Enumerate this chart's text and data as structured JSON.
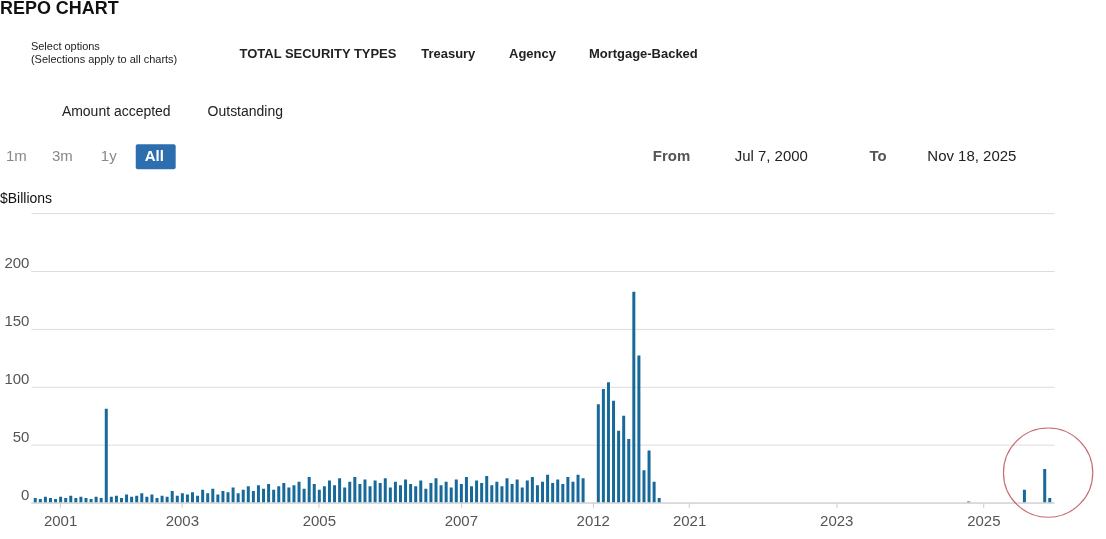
{
  "chart_data": {
    "type": "bar",
    "title": "REPO CHART",
    "ylabel": "$Billions",
    "color": "#17699a",
    "categories": [
      null,
      null,
      null,
      null,
      null,
      "2001",
      null,
      null,
      null,
      null,
      null,
      null,
      null,
      null,
      null,
      null,
      null,
      null,
      null,
      null,
      null,
      null,
      null,
      null,
      null,
      null,
      null,
      null,
      null,
      "2003",
      null,
      null,
      null,
      null,
      null,
      null,
      null,
      null,
      null,
      null,
      null,
      null,
      null,
      null,
      null,
      null,
      null,
      null,
      null,
      null,
      null,
      null,
      null,
      null,
      null,
      null,
      "2005",
      null,
      null,
      null,
      null,
      null,
      null,
      null,
      null,
      null,
      null,
      null,
      null,
      null,
      null,
      null,
      null,
      null,
      null,
      null,
      null,
      null,
      null,
      null,
      null,
      null,
      null,
      null,
      "2007",
      null,
      null,
      null,
      null,
      null,
      null,
      null,
      null,
      null,
      null,
      null,
      null,
      null,
      null,
      null,
      null,
      null,
      null,
      null,
      null,
      null,
      null,
      null,
      null,
      null,
      "2012",
      null,
      null,
      null,
      null,
      null,
      null,
      null,
      null,
      null,
      null,
      null,
      null,
      null,
      null,
      null,
      null,
      null,
      null,
      "2021",
      null,
      null,
      null,
      null,
      null,
      null,
      null,
      null,
      null,
      null,
      null,
      null,
      null,
      null,
      null,
      null,
      null,
      null,
      null,
      null,
      null,
      null,
      null,
      null,
      null,
      null,
      null,
      null,
      "2023",
      null,
      null,
      null,
      null,
      null,
      null,
      null,
      null,
      null,
      null,
      null,
      null,
      null,
      null,
      null,
      null,
      null,
      null,
      null,
      null,
      null,
      null,
      null,
      null,
      null,
      null,
      null,
      null,
      "2025",
      null,
      null,
      null,
      null,
      null,
      null,
      null,
      null,
      null,
      null,
      null,
      null,
      null
    ],
    "values": [
      4,
      3,
      5,
      4,
      3,
      5,
      4,
      6,
      4,
      5,
      4,
      3,
      5,
      4,
      81,
      5,
      6,
      4,
      7,
      5,
      6,
      8,
      5,
      7,
      4,
      6,
      5,
      10,
      6,
      8,
      7,
      9,
      6,
      11,
      8,
      12,
      7,
      10,
      9,
      13,
      8,
      11,
      14,
      10,
      15,
      12,
      16,
      11,
      14,
      17,
      13,
      15,
      18,
      12,
      22,
      16,
      11,
      14,
      19,
      15,
      21,
      13,
      18,
      22,
      16,
      20,
      14,
      19,
      17,
      21,
      13,
      18,
      15,
      20,
      16,
      14,
      19,
      12,
      17,
      21,
      15,
      18,
      13,
      20,
      16,
      22,
      14,
      19,
      17,
      23,
      15,
      18,
      14,
      21,
      16,
      20,
      13,
      19,
      22,
      15,
      18,
      24,
      17,
      20,
      16,
      22,
      18,
      24,
      21,
      0,
      0,
      85,
      98,
      104,
      88,
      62,
      75,
      55,
      182,
      127,
      28,
      45,
      18,
      4,
      0,
      0,
      0,
      0,
      0,
      0,
      0,
      0,
      0,
      0,
      0,
      0,
      0,
      0,
      0,
      0,
      0,
      0,
      0,
      0,
      0,
      0,
      0,
      0,
      0,
      0,
      0,
      0,
      0,
      0,
      0,
      0,
      0,
      0,
      0,
      0,
      0,
      0,
      0,
      0,
      0,
      0,
      0,
      0,
      0,
      0,
      0,
      0,
      0,
      0,
      0,
      0,
      0,
      0,
      0,
      0,
      0,
      0,
      0,
      0,
      1,
      0,
      0,
      0,
      0,
      0,
      0,
      0,
      0,
      0,
      0,
      11,
      0,
      0,
      0,
      29,
      4
    ],
    "ylim": [
      0,
      250
    ],
    "yticks": [
      0,
      50,
      100,
      150,
      200,
      {
        "value": 250,
        "label": null
      }
    ],
    "grid": "y",
    "annotations": [
      "Select options",
      "(Selections apply to all charts)",
      "TOTAL SECURITY TYPES",
      "Treasury",
      "Agency",
      "Mortgage-Backed",
      "Amount accepted",
      "Outstanding",
      "1m",
      "3m",
      "1y",
      "All",
      "From",
      "Jul 7, 2000",
      "To",
      "Nov 18, 2025"
    ]
  }
}
